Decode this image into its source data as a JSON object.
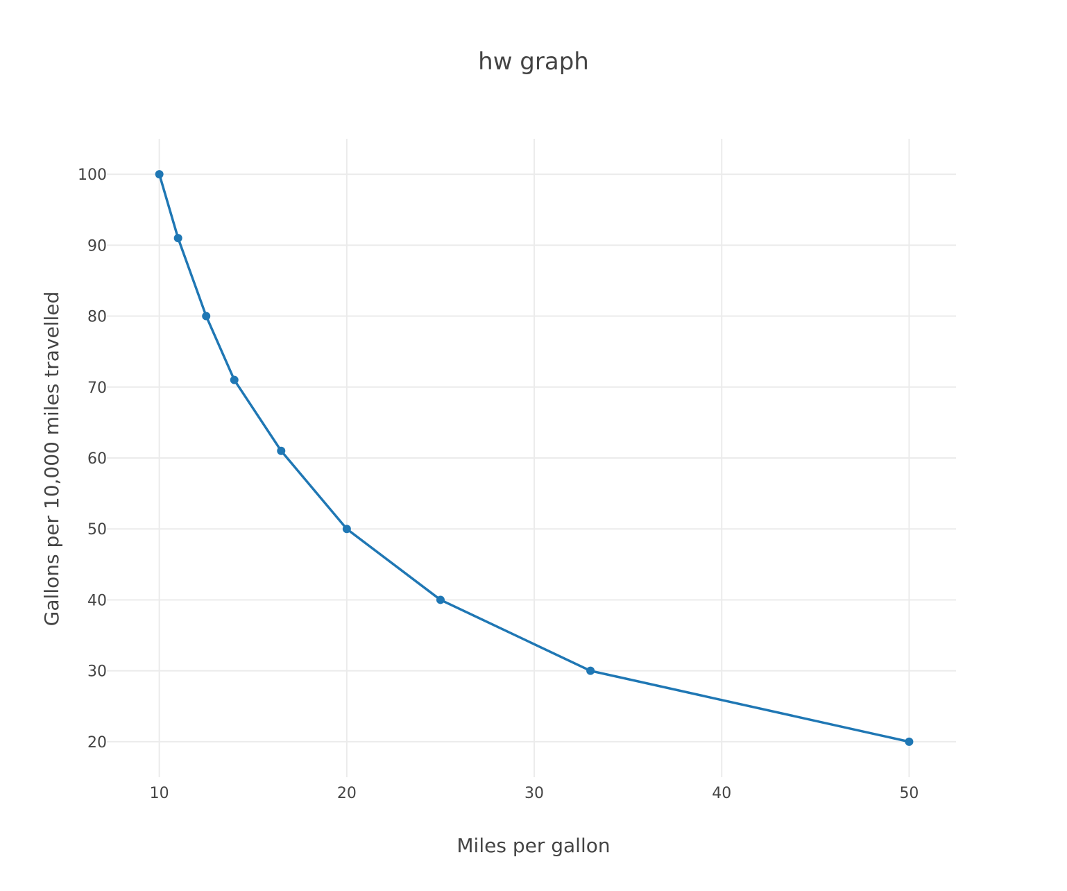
{
  "chart_data": {
    "type": "line",
    "title": "hw graph",
    "xlabel": "Miles per gallon",
    "ylabel": "Gallons per 10,000 miles travelled",
    "xlim": [
      7.2,
      52.5
    ],
    "ylim": [
      15,
      105
    ],
    "x_ticks": [
      10,
      20,
      30,
      40,
      50
    ],
    "y_ticks": [
      20,
      30,
      40,
      50,
      60,
      70,
      80,
      90,
      100
    ],
    "grid": true,
    "line_color": "#1f77b4",
    "series": [
      {
        "x": [
          10,
          11,
          12.5,
          14,
          16.5,
          20,
          25,
          33,
          50
        ],
        "y": [
          100,
          91,
          80,
          71,
          61,
          50,
          40,
          30,
          20
        ]
      }
    ]
  }
}
